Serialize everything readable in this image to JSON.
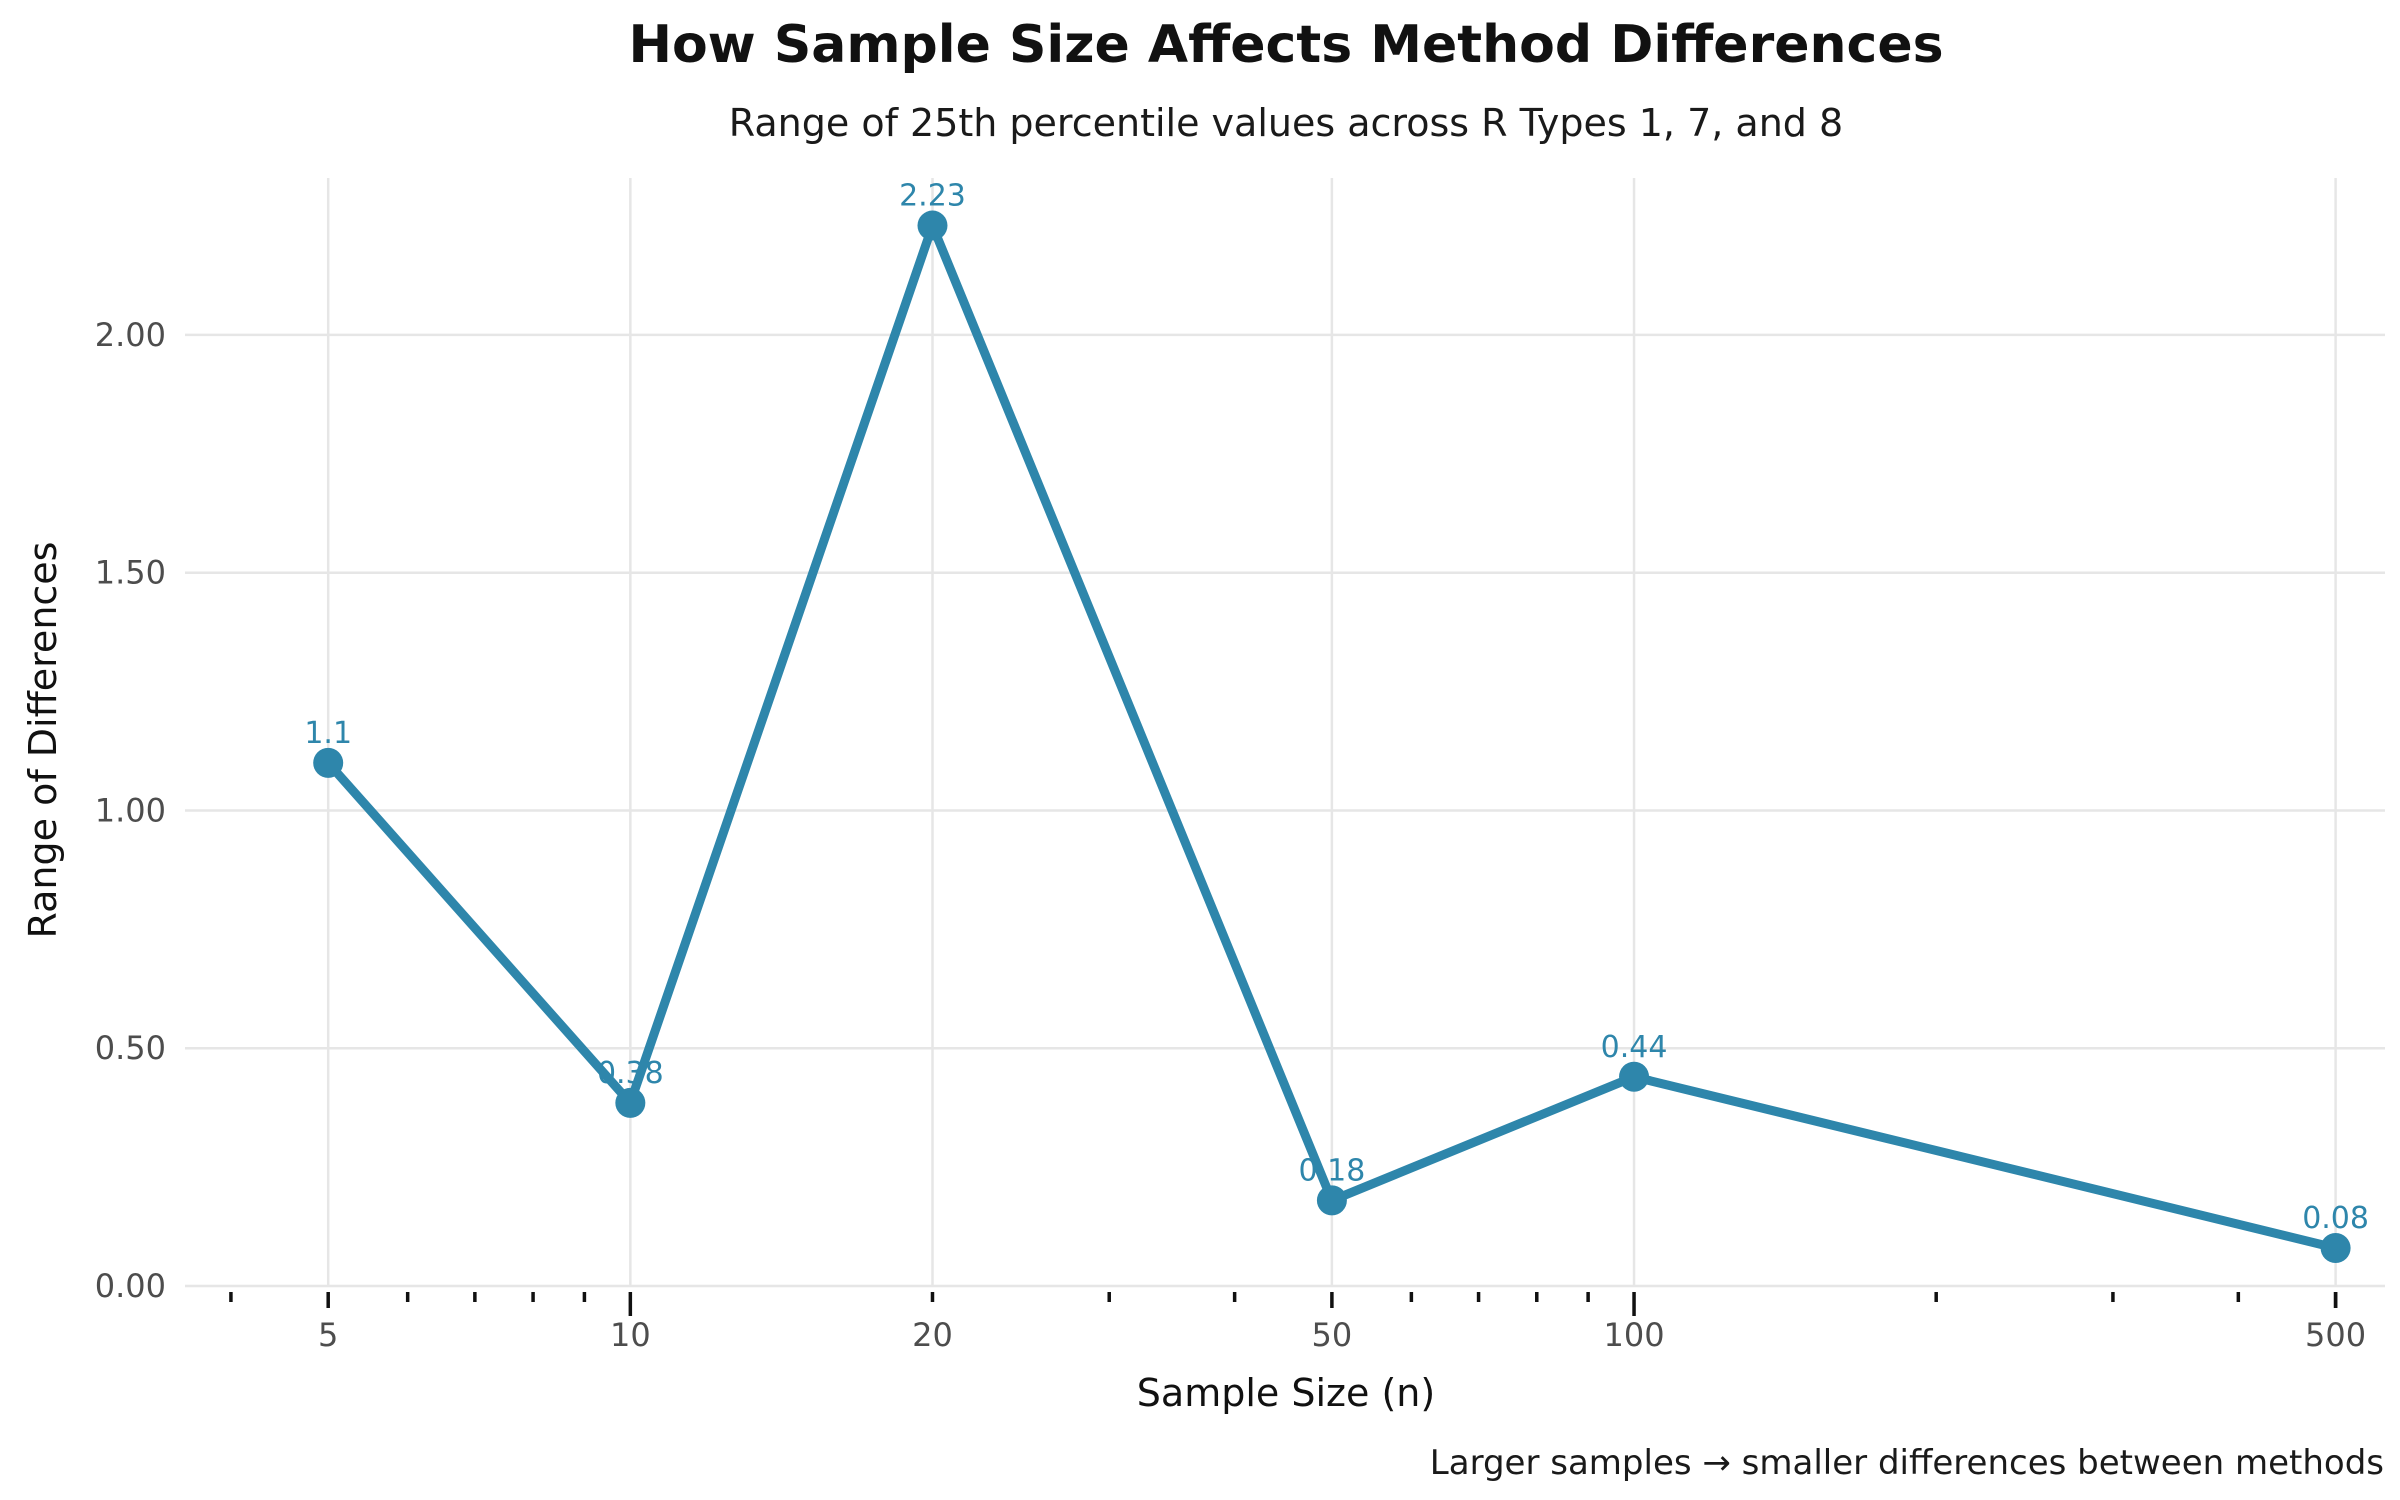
{
  "chart_data": {
    "type": "line",
    "title": "How Sample Size Affects Method Differences",
    "subtitle": "Range of 25th percentile values across R Types 1, 7, and 8",
    "xlabel": "Sample Size (n)",
    "ylabel": "Range of Differences",
    "caption": "Larger samples → smaller differences between methods",
    "x_scale": "log10",
    "x": [
      5,
      10,
      20,
      50,
      100,
      500
    ],
    "x_tick_labels": [
      "5",
      "10",
      "20",
      "50",
      "100",
      "500"
    ],
    "xlim": [
      3.6,
      560
    ],
    "y": [
      1.1,
      0.385,
      2.23,
      0.18,
      0.44,
      0.08
    ],
    "data_labels": [
      "1.1",
      "0.38",
      "2.23",
      "0.18",
      "0.44",
      "0.08"
    ],
    "y_ticks": [
      0,
      0.5,
      1,
      1.5,
      2
    ],
    "y_tick_labels": [
      "0.00",
      "0.50",
      "1.00",
      "1.50",
      "2.00"
    ],
    "ylim": [
      0,
      2.33
    ],
    "grid": true,
    "log_ticks": true,
    "color": "#2e86ab"
  }
}
